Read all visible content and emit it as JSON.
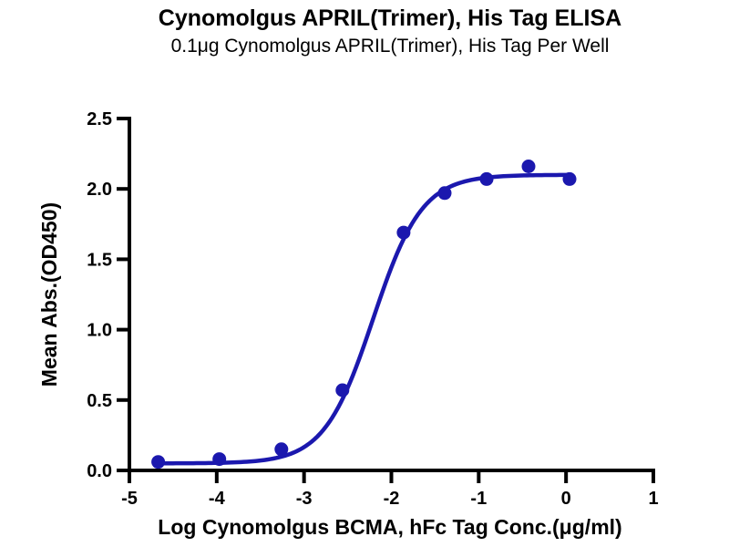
{
  "chart_data": {
    "type": "scatter",
    "title": "Cynomolgus APRIL(Trimer), His Tag ELISA",
    "subtitle": "0.1μg Cynomolgus APRIL(Trimer), His Tag Per Well",
    "xlabel": "Log Cynomolgus BCMA, hFc Tag Conc.(μg/ml)",
    "ylabel": "Mean Abs.(OD450)",
    "xlim": [
      -5,
      1
    ],
    "ylim": [
      0,
      2.5
    ],
    "x_tick_values": [
      -5,
      -4,
      -3,
      -2,
      -1,
      0,
      1
    ],
    "x_tick_labels": [
      "-5",
      "-4",
      "-3",
      "-2",
      "-1",
      "0",
      "1"
    ],
    "y_tick_values": [
      0,
      0.5,
      1,
      1.5,
      2,
      2.5
    ],
    "y_tick_labels": [
      "0.0",
      "0.5",
      "1.0",
      "1.5",
      "2.0",
      "2.5"
    ],
    "grid": false,
    "legend_position": "none",
    "background_color": "#ffffff",
    "axis_color": "#000000",
    "series": [
      {
        "name": "Cynomolgus BCMA, hFc Tag",
        "color": "#1b18ae",
        "marker": "circle",
        "points": [
          {
            "x": -4.67,
            "y": 0.06
          },
          {
            "x": -3.97,
            "y": 0.08
          },
          {
            "x": -3.26,
            "y": 0.15
          },
          {
            "x": -2.56,
            "y": 0.57
          },
          {
            "x": -1.86,
            "y": 1.69
          },
          {
            "x": -1.39,
            "y": 1.97
          },
          {
            "x": -0.91,
            "y": 2.07
          },
          {
            "x": -0.43,
            "y": 2.16
          },
          {
            "x": 0.04,
            "y": 2.07
          }
        ],
        "fit_4pl": {
          "bottom": 0.05,
          "top": 2.1,
          "log_ec50": -2.21,
          "hill_slope": 1.55,
          "x_start": -4.67,
          "x_end": 0.06
        }
      }
    ]
  }
}
